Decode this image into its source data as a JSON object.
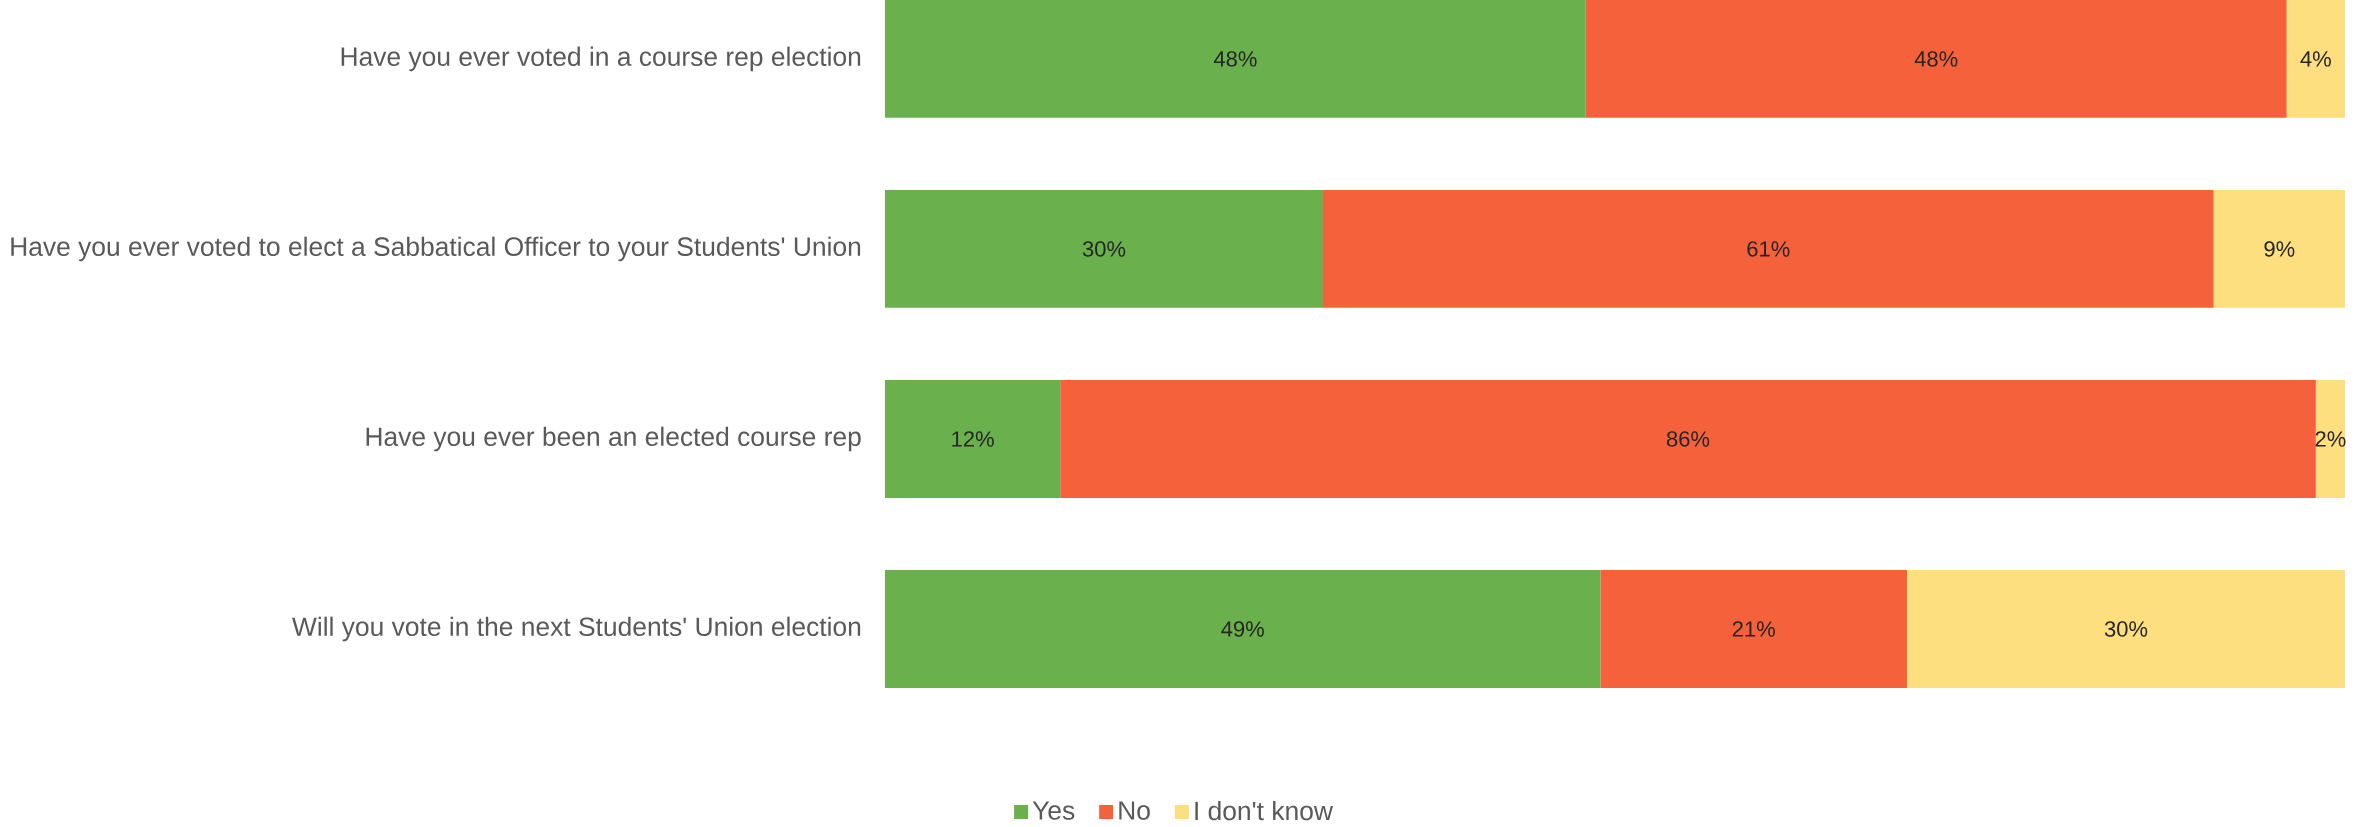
{
  "chart_data": {
    "type": "bar",
    "orientation": "horizontal",
    "stacked": true,
    "legend": "bottom",
    "categories": [
      "Have you ever voted in a course rep election",
      "Have you ever voted to elect a Sabbatical Officer to your Students' Union",
      "Have you ever been an elected course rep",
      "Will you vote in the next Students' Union election"
    ],
    "series": [
      {
        "name": "Yes",
        "color": "#6ab04c",
        "values": [
          48,
          30,
          12,
          49
        ],
        "value_labels": [
          "48%",
          "30%",
          "12%",
          "49%"
        ]
      },
      {
        "name": "No",
        "color": "#f4613b",
        "values": [
          48,
          61,
          86,
          21
        ],
        "value_labels": [
          "48%",
          "61%",
          "86%",
          "21%"
        ]
      },
      {
        "name": "I don't know",
        "color": "#fedf80",
        "values": [
          4,
          9,
          2,
          30
        ],
        "value_labels": [
          "4%",
          "9%",
          "2%",
          "30%"
        ]
      }
    ]
  }
}
